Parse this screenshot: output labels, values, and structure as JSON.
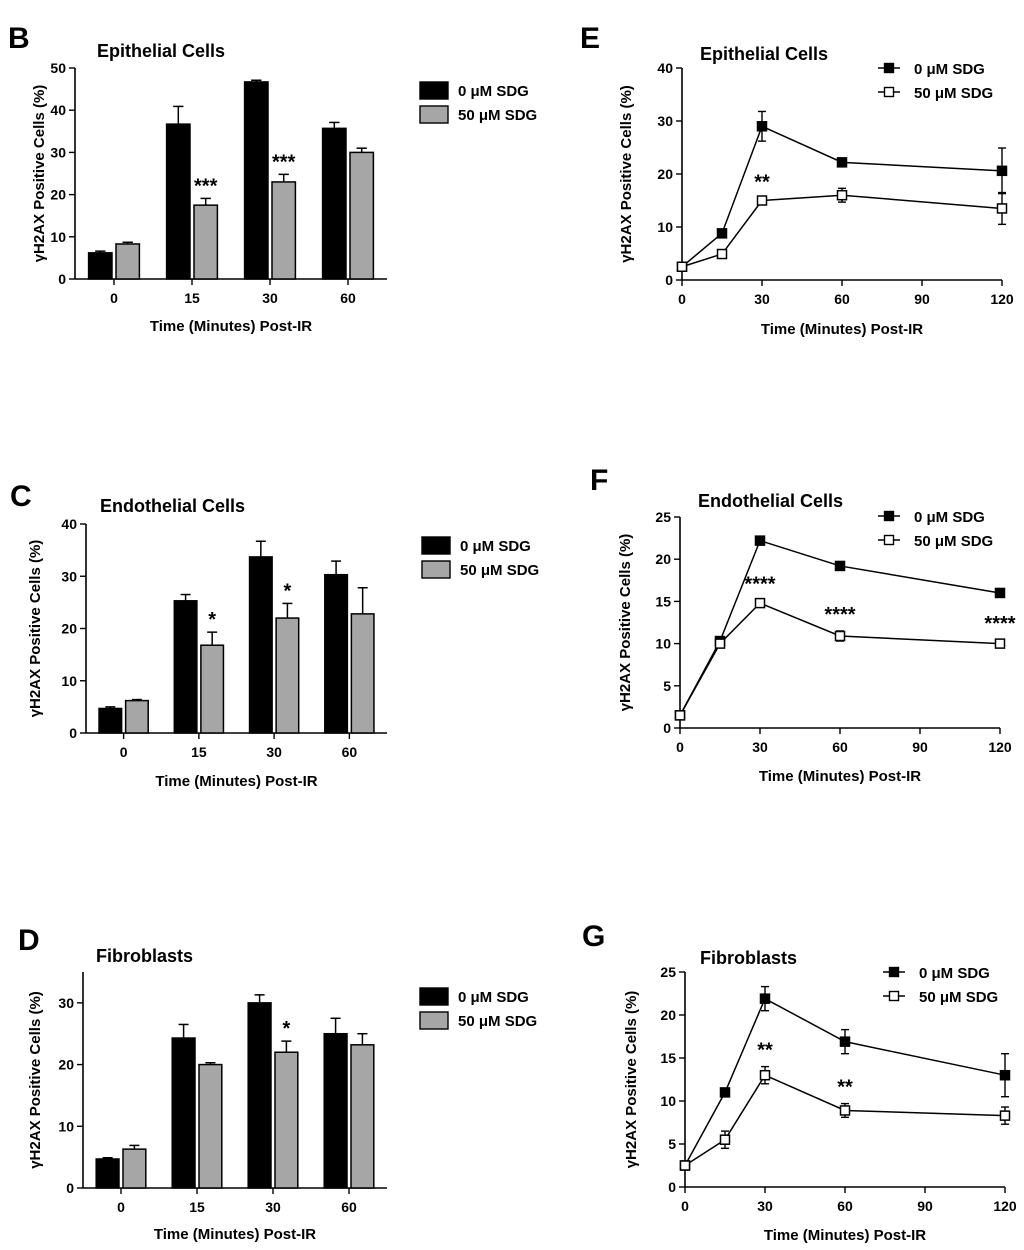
{
  "figure": {
    "colors": {
      "control": "#000000",
      "treated": "#a6a6a6",
      "axis": "#000000",
      "marker_fill_open": "#ffffff"
    }
  },
  "chart_data": [
    {
      "id": "B",
      "panel_label": "B",
      "type": "bar",
      "title": "Epithelial  Cells",
      "xlabel": "Time (Minutes) Post-IR",
      "ylabel": "γH2AX Positive Cells (%)",
      "categories": [
        "0",
        "15",
        "30",
        "60"
      ],
      "ylim": [
        0,
        50
      ],
      "yticks": [
        0,
        10,
        20,
        30,
        40,
        50
      ],
      "series": [
        {
          "name": "0 μM SDG",
          "values": [
            6.2,
            36.7,
            46.7,
            35.7
          ],
          "errors": [
            0.4,
            4.2,
            0.4,
            1.4
          ]
        },
        {
          "name": "50 μM SDG",
          "values": [
            8.3,
            17.5,
            23.0,
            30.0
          ],
          "errors": [
            0.4,
            1.6,
            1.8,
            1.0
          ]
        }
      ],
      "annotations": [
        {
          "category": "15",
          "text": "***"
        },
        {
          "category": "30",
          "text": "***"
        }
      ]
    },
    {
      "id": "E",
      "panel_label": "E",
      "type": "line",
      "title": "Epithelial  Cells",
      "xlabel": "Time (Minutes) Post-IR",
      "ylabel": "γH2AX Positive Cells (%)",
      "x": [
        0,
        15,
        30,
        60,
        120
      ],
      "xlim": [
        0,
        120
      ],
      "xticks": [
        0,
        30,
        60,
        90,
        120
      ],
      "ylim": [
        0,
        40
      ],
      "yticks": [
        0,
        10,
        20,
        30,
        40
      ],
      "series": [
        {
          "name": "0 μM SDG",
          "values": [
            2.5,
            8.8,
            29.0,
            22.2,
            20.6
          ],
          "errors": [
            0,
            0.3,
            2.8,
            0.3,
            4.3
          ]
        },
        {
          "name": "50 μM SDG",
          "values": [
            2.5,
            4.9,
            15.0,
            16.0,
            13.5
          ],
          "errors": [
            0,
            0.3,
            0.4,
            1.3,
            3.0
          ]
        }
      ],
      "annotations": [
        {
          "x": 30,
          "text": "**"
        }
      ]
    },
    {
      "id": "C",
      "panel_label": "C",
      "type": "bar",
      "title": "Endothelial  Cells",
      "xlabel": "Time (Minutes) Post-IR",
      "ylabel": "γH2AX Positive Cells (%)",
      "categories": [
        "0",
        "15",
        "30",
        "60"
      ],
      "ylim": [
        0,
        40
      ],
      "yticks": [
        0,
        10,
        20,
        30,
        40
      ],
      "series": [
        {
          "name": "0 μM SDG",
          "values": [
            4.7,
            25.3,
            33.7,
            30.3
          ],
          "errors": [
            0.3,
            1.2,
            3.0,
            2.6
          ]
        },
        {
          "name": "50 μM SDG",
          "values": [
            6.2,
            16.8,
            22.0,
            22.8
          ],
          "errors": [
            0.2,
            2.5,
            2.8,
            5.0
          ]
        }
      ],
      "annotations": [
        {
          "category": "15",
          "text": "*"
        },
        {
          "category": "30",
          "text": "*"
        }
      ]
    },
    {
      "id": "F",
      "panel_label": "F",
      "type": "line",
      "title": "Endothelial  Cells",
      "xlabel": "Time (Minutes) Post-IR",
      "ylabel": "γH2AX Positive Cells (%)",
      "x": [
        0,
        15,
        30,
        60,
        120
      ],
      "xlim": [
        0,
        120
      ],
      "xticks": [
        0,
        30,
        60,
        90,
        120
      ],
      "ylim": [
        0,
        25
      ],
      "yticks": [
        0,
        5,
        10,
        15,
        20,
        25
      ],
      "series": [
        {
          "name": "0 μM SDG",
          "values": [
            1.5,
            10.3,
            22.2,
            19.2,
            16.0
          ],
          "errors": [
            0,
            0.3,
            0.2,
            0.2,
            0.3
          ]
        },
        {
          "name": "50 μM SDG",
          "values": [
            1.5,
            10.0,
            14.8,
            10.9,
            10.0
          ],
          "errors": [
            0,
            0.3,
            0.3,
            0.6,
            0.4
          ]
        }
      ],
      "annotations": [
        {
          "x": 30,
          "text": "****"
        },
        {
          "x": 60,
          "text": "****"
        },
        {
          "x": 120,
          "text": "****"
        }
      ]
    },
    {
      "id": "D",
      "panel_label": "D",
      "type": "bar",
      "title": "Fibroblasts",
      "xlabel": "Time (Minutes) Post-IR",
      "ylabel": "γH2AX Positive Cells (%)",
      "categories": [
        "0",
        "15",
        "30",
        "60"
      ],
      "ylim": [
        0,
        35
      ],
      "yticks": [
        0,
        10,
        20,
        30
      ],
      "series": [
        {
          "name": "0 μM SDG",
          "values": [
            4.7,
            24.3,
            30.0,
            25.0
          ],
          "errors": [
            0.2,
            2.2,
            1.3,
            2.5
          ]
        },
        {
          "name": "50 μM SDG",
          "values": [
            6.3,
            20.0,
            22.0,
            23.2
          ],
          "errors": [
            0.6,
            0.3,
            1.8,
            1.8
          ]
        }
      ],
      "annotations": [
        {
          "category": "30",
          "text": "*"
        }
      ]
    },
    {
      "id": "G",
      "panel_label": "G",
      "type": "line",
      "title": "Fibroblasts",
      "xlabel": "Time (Minutes) Post-IR",
      "ylabel": "γH2AX Positive Cells (%)",
      "x": [
        0,
        15,
        30,
        60,
        120
      ],
      "xlim": [
        0,
        120
      ],
      "xticks": [
        0,
        30,
        60,
        90,
        120
      ],
      "ylim": [
        0,
        25
      ],
      "yticks": [
        0,
        5,
        10,
        15,
        20,
        25
      ],
      "series": [
        {
          "name": "0 μM SDG",
          "values": [
            2.5,
            11.0,
            21.9,
            16.9,
            13.0
          ],
          "errors": [
            0,
            0.3,
            1.4,
            1.4,
            2.5
          ]
        },
        {
          "name": "50 μM SDG",
          "values": [
            2.5,
            5.5,
            13.0,
            8.9,
            8.3
          ],
          "errors": [
            0,
            1.0,
            1.0,
            0.8,
            1.0
          ]
        }
      ],
      "annotations": [
        {
          "x": 30,
          "text": "**"
        },
        {
          "x": 60,
          "text": "**"
        }
      ]
    }
  ]
}
